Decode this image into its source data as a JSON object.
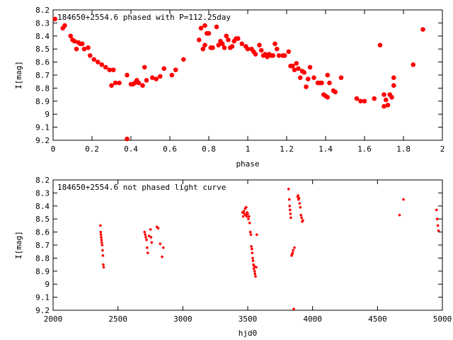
{
  "chart_data": [
    {
      "type": "scatter",
      "title": "184650+2554.6 phased with P=112.25day",
      "xlabel": "phase",
      "ylabel": "I[mag]",
      "xlim": [
        0,
        2
      ],
      "ylim": [
        8.2,
        9.2
      ],
      "y_inverted": true,
      "x_ticks": [
        "0",
        "0.2",
        "0.4",
        "0.6",
        "0.8",
        "1",
        "1.2",
        "1.4",
        "1.6",
        "1.8",
        "2"
      ],
      "y_ticks": [
        "8.2",
        "8.3",
        "8.4",
        "8.5",
        "8.6",
        "8.7",
        "8.8",
        "8.9",
        "9",
        "9.1",
        "9.2"
      ],
      "grid": false,
      "marker_color": "#ff0000",
      "series": [
        {
          "points": [
            [
              0.01,
              8.27
            ],
            [
              0.05,
              8.34
            ],
            [
              0.06,
              8.32
            ],
            [
              0.09,
              8.4
            ],
            [
              0.1,
              8.43
            ],
            [
              0.11,
              8.44
            ],
            [
              0.12,
              8.5
            ],
            [
              0.13,
              8.45
            ],
            [
              0.14,
              8.46
            ],
            [
              0.15,
              8.46
            ],
            [
              0.16,
              8.5
            ],
            [
              0.18,
              8.49
            ],
            [
              0.19,
              8.55
            ],
            [
              0.21,
              8.58
            ],
            [
              0.23,
              8.6
            ],
            [
              0.25,
              8.62
            ],
            [
              0.27,
              8.64
            ],
            [
              0.29,
              8.66
            ],
            [
              0.3,
              8.78
            ],
            [
              0.31,
              8.66
            ],
            [
              0.32,
              8.76
            ],
            [
              0.34,
              8.76
            ],
            [
              0.38,
              9.19
            ],
            [
              0.38,
              8.7
            ],
            [
              0.4,
              8.77
            ],
            [
              0.41,
              8.77
            ],
            [
              0.42,
              8.76
            ],
            [
              0.43,
              8.74
            ],
            [
              0.44,
              8.76
            ],
            [
              0.46,
              8.78
            ],
            [
              0.47,
              8.64
            ],
            [
              0.48,
              8.74
            ],
            [
              0.51,
              8.72
            ],
            [
              0.53,
              8.73
            ],
            [
              0.55,
              8.71
            ],
            [
              0.57,
              8.65
            ],
            [
              0.61,
              8.7
            ],
            [
              0.63,
              8.66
            ],
            [
              0.67,
              8.58
            ],
            [
              0.75,
              8.43
            ],
            [
              0.76,
              8.34
            ],
            [
              0.77,
              8.5
            ],
            [
              0.78,
              8.32
            ],
            [
              0.78,
              8.47
            ],
            [
              0.79,
              8.38
            ],
            [
              0.8,
              8.38
            ],
            [
              0.81,
              8.49
            ],
            [
              0.82,
              8.49
            ],
            [
              0.84,
              8.33
            ],
            [
              0.85,
              8.47
            ],
            [
              0.86,
              8.44
            ],
            [
              0.87,
              8.46
            ],
            [
              0.88,
              8.49
            ],
            [
              0.89,
              8.4
            ],
            [
              0.9,
              8.43
            ],
            [
              0.91,
              8.49
            ],
            [
              0.92,
              8.48
            ],
            [
              0.93,
              8.44
            ],
            [
              0.94,
              8.42
            ],
            [
              0.95,
              8.42
            ],
            [
              0.97,
              8.46
            ],
            [
              0.99,
              8.48
            ],
            [
              1.0,
              8.5
            ],
            [
              1.02,
              8.5
            ],
            [
              1.03,
              8.52
            ],
            [
              1.04,
              8.54
            ],
            [
              1.06,
              8.47
            ],
            [
              1.07,
              8.51
            ],
            [
              1.08,
              8.55
            ],
            [
              1.09,
              8.54
            ],
            [
              1.1,
              8.56
            ],
            [
              1.11,
              8.54
            ],
            [
              1.12,
              8.55
            ],
            [
              1.13,
              8.55
            ],
            [
              1.14,
              8.46
            ],
            [
              1.15,
              8.5
            ],
            [
              1.16,
              8.55
            ],
            [
              1.18,
              8.55
            ],
            [
              1.19,
              8.55
            ],
            [
              1.21,
              8.52
            ],
            [
              1.22,
              8.63
            ],
            [
              1.23,
              8.63
            ],
            [
              1.24,
              8.66
            ],
            [
              1.25,
              8.61
            ],
            [
              1.26,
              8.65
            ],
            [
              1.27,
              8.72
            ],
            [
              1.28,
              8.67
            ],
            [
              1.29,
              8.68
            ],
            [
              1.3,
              8.79
            ],
            [
              1.31,
              8.73
            ],
            [
              1.32,
              8.64
            ],
            [
              1.34,
              8.72
            ],
            [
              1.36,
              8.76
            ],
            [
              1.37,
              8.76
            ],
            [
              1.38,
              8.76
            ],
            [
              1.39,
              8.85
            ],
            [
              1.4,
              8.86
            ],
            [
              1.41,
              8.87
            ],
            [
              1.41,
              8.7
            ],
            [
              1.42,
              8.76
            ],
            [
              1.44,
              8.82
            ],
            [
              1.45,
              8.83
            ],
            [
              1.48,
              8.72
            ],
            [
              1.56,
              8.88
            ],
            [
              1.58,
              8.9
            ],
            [
              1.6,
              8.9
            ],
            [
              1.65,
              8.88
            ],
            [
              1.68,
              8.47
            ],
            [
              1.7,
              8.94
            ],
            [
              1.7,
              8.85
            ],
            [
              1.71,
              8.89
            ],
            [
              1.72,
              8.93
            ],
            [
              1.73,
              8.85
            ],
            [
              1.74,
              8.87
            ],
            [
              1.75,
              8.78
            ],
            [
              1.75,
              8.72
            ],
            [
              1.85,
              8.62
            ],
            [
              1.9,
              8.35
            ]
          ]
        }
      ]
    },
    {
      "type": "scatter",
      "title": "184650+2554.6 not phased light curve",
      "xlabel": "hjd0",
      "ylabel": "I[mag]",
      "xlim": [
        2000,
        5000
      ],
      "ylim": [
        8.2,
        9.2
      ],
      "y_inverted": true,
      "x_ticks": [
        "2000",
        "2500",
        "3000",
        "3500",
        "4000",
        "4500",
        "5000"
      ],
      "y_ticks": [
        "8.2",
        "8.3",
        "8.4",
        "8.5",
        "8.6",
        "8.7",
        "8.8",
        "8.9",
        "9",
        "9.1",
        "9.2"
      ],
      "grid": false,
      "marker_color": "#ff0000",
      "series": [
        {
          "points": [
            [
              2365,
              8.55
            ],
            [
              2367,
              8.6
            ],
            [
              2369,
              8.62
            ],
            [
              2371,
              8.64
            ],
            [
              2373,
              8.66
            ],
            [
              2375,
              8.68
            ],
            [
              2378,
              8.7
            ],
            [
              2381,
              8.74
            ],
            [
              2384,
              8.78
            ],
            [
              2387,
              8.85
            ],
            [
              2390,
              8.87
            ],
            [
              2705,
              8.6
            ],
            [
              2710,
              8.62
            ],
            [
              2715,
              8.64
            ],
            [
              2720,
              8.66
            ],
            [
              2725,
              8.72
            ],
            [
              2730,
              8.76
            ],
            [
              2740,
              8.63
            ],
            [
              2750,
              8.58
            ],
            [
              2755,
              8.64
            ],
            [
              2760,
              8.68
            ],
            [
              2800,
              8.56
            ],
            [
              2810,
              8.57
            ],
            [
              2825,
              8.69
            ],
            [
              2840,
              8.79
            ],
            [
              2850,
              8.72
            ],
            [
              3460,
              8.45
            ],
            [
              3465,
              8.48
            ],
            [
              3470,
              8.44
            ],
            [
              3475,
              8.46
            ],
            [
              3480,
              8.42
            ],
            [
              3485,
              8.47
            ],
            [
              3488,
              8.41
            ],
            [
              3492,
              8.48
            ],
            [
              3495,
              8.45
            ],
            [
              3500,
              8.46
            ],
            [
              3505,
              8.5
            ],
            [
              3510,
              8.48
            ],
            [
              3515,
              8.53
            ],
            [
              3520,
              8.6
            ],
            [
              3525,
              8.62
            ],
            [
              3528,
              8.71
            ],
            [
              3532,
              8.73
            ],
            [
              3535,
              8.76
            ],
            [
              3538,
              8.8
            ],
            [
              3541,
              8.82
            ],
            [
              3544,
              8.85
            ],
            [
              3547,
              8.88
            ],
            [
              3550,
              8.86
            ],
            [
              3553,
              8.9
            ],
            [
              3556,
              8.92
            ],
            [
              3560,
              8.94
            ],
            [
              3565,
              8.87
            ],
            [
              3570,
              8.62
            ],
            [
              3815,
              8.27
            ],
            [
              3820,
              8.35
            ],
            [
              3823,
              8.4
            ],
            [
              3826,
              8.43
            ],
            [
              3829,
              8.46
            ],
            [
              3832,
              8.49
            ],
            [
              3838,
              8.78
            ],
            [
              3842,
              8.77
            ],
            [
              3846,
              8.76
            ],
            [
              3850,
              8.74
            ],
            [
              3855,
              9.19
            ],
            [
              3860,
              8.72
            ],
            [
              3885,
              8.33
            ],
            [
              3888,
              8.32
            ],
            [
              3891,
              8.35
            ],
            [
              3895,
              8.34
            ],
            [
              3900,
              8.38
            ],
            [
              3905,
              8.41
            ],
            [
              3910,
              8.47
            ],
            [
              3915,
              8.49
            ],
            [
              3920,
              8.52
            ],
            [
              3925,
              8.51
            ],
            [
              4670,
              8.47
            ],
            [
              4700,
              8.35
            ],
            [
              4955,
              8.43
            ],
            [
              4960,
              8.5
            ],
            [
              4965,
              8.55
            ],
            [
              4970,
              8.59
            ]
          ]
        }
      ]
    }
  ]
}
